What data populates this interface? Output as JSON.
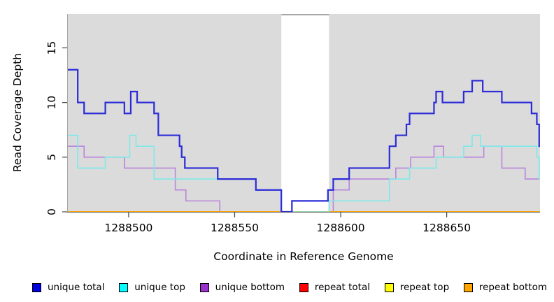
{
  "figure": {
    "xlabel": "Coordinate in Reference Genome",
    "ylabel": "Read Coverage Depth"
  },
  "chart_data": {
    "type": "line",
    "subtype": "step",
    "title": "",
    "xlabel": "Coordinate in Reference Genome",
    "ylabel": "Read Coverage Depth",
    "xlim": [
      1288471,
      1288694
    ],
    "ylim": [
      0,
      18.1
    ],
    "x_ticks": [
      1288500,
      1288550,
      1288600,
      1288650
    ],
    "y_ticks": [
      0,
      5,
      10,
      15
    ],
    "grid": false,
    "plot_bg": "#DBDBDB",
    "page_bg": "#FFFFFF",
    "gap_region": {
      "x_start": 1288572,
      "x_end": 1288594.5,
      "color": "#FFFFFF",
      "top_border_color": "#8A8A8A"
    },
    "legend_position": "bottom",
    "draw_order": [
      3,
      4,
      2,
      5,
      1,
      0
    ],
    "series": [
      {
        "name": "unique total",
        "line_color": "#2C2CD8",
        "legend_color": "#0000E0",
        "line_width": 2.2,
        "points": [
          [
            1288471,
            13
          ],
          [
            1288476,
            10
          ],
          [
            1288479,
            9
          ],
          [
            1288489,
            10
          ],
          [
            1288498,
            9
          ],
          [
            1288501,
            11
          ],
          [
            1288504,
            10
          ],
          [
            1288512,
            9
          ],
          [
            1288514,
            7
          ],
          [
            1288524,
            6
          ],
          [
            1288525,
            5
          ],
          [
            1288526.5,
            4
          ],
          [
            1288542,
            3
          ],
          [
            1288560,
            2
          ],
          [
            1288572,
            0
          ],
          [
            1288577,
            1
          ],
          [
            1288594,
            2
          ],
          [
            1288596.5,
            3
          ],
          [
            1288604,
            4
          ],
          [
            1288623,
            6
          ],
          [
            1288626,
            7
          ],
          [
            1288631,
            8
          ],
          [
            1288632.5,
            9
          ],
          [
            1288644,
            10
          ],
          [
            1288645,
            11
          ],
          [
            1288648,
            10
          ],
          [
            1288658,
            11
          ],
          [
            1288662,
            12
          ],
          [
            1288667,
            11
          ],
          [
            1288676,
            10
          ],
          [
            1288690,
            9
          ],
          [
            1288692.5,
            8
          ],
          [
            1288693.6,
            6
          ]
        ]
      },
      {
        "name": "unique top",
        "line_color": "#7DE9E9",
        "legend_color": "#00FFFF",
        "line_width": 1.6,
        "points": [
          [
            1288471,
            7
          ],
          [
            1288476,
            4
          ],
          [
            1288489,
            5
          ],
          [
            1288500.5,
            7
          ],
          [
            1288503.5,
            6
          ],
          [
            1288512,
            3
          ],
          [
            1288560,
            2
          ],
          [
            1288572,
            0
          ],
          [
            1288594.5,
            1
          ],
          [
            1288623,
            3
          ],
          [
            1288632.5,
            4
          ],
          [
            1288645,
            5
          ],
          [
            1288658,
            6
          ],
          [
            1288662,
            7
          ],
          [
            1288666,
            6
          ],
          [
            1288692.5,
            5
          ],
          [
            1288693.6,
            3
          ]
        ]
      },
      {
        "name": "unique bottom",
        "line_color": "#BA85DC",
        "legend_color": "#9932CC",
        "line_width": 1.6,
        "points": [
          [
            1288471,
            6
          ],
          [
            1288479,
            5
          ],
          [
            1288498,
            4
          ],
          [
            1288522,
            2
          ],
          [
            1288527,
            1
          ],
          [
            1288543,
            0
          ],
          [
            1288596.5,
            2
          ],
          [
            1288604,
            3
          ],
          [
            1288626,
            4
          ],
          [
            1288633,
            5
          ],
          [
            1288644,
            6
          ],
          [
            1288648.5,
            5
          ],
          [
            1288667.5,
            6
          ],
          [
            1288676,
            4
          ],
          [
            1288687,
            3
          ]
        ]
      },
      {
        "name": "repeat total",
        "line_color": "#FF0000",
        "legend_color": "#FF0000",
        "line_width": 1.6,
        "points": [
          [
            1288471,
            0
          ]
        ]
      },
      {
        "name": "repeat top",
        "line_color": "#FFFF00",
        "legend_color": "#FFFF00",
        "line_width": 1.6,
        "points": [
          [
            1288471,
            0
          ]
        ]
      },
      {
        "name": "repeat bottom",
        "line_color": "#FFA500",
        "legend_color": "#FFA500",
        "line_width": 2,
        "points": [
          [
            1288471,
            0
          ]
        ]
      }
    ]
  }
}
